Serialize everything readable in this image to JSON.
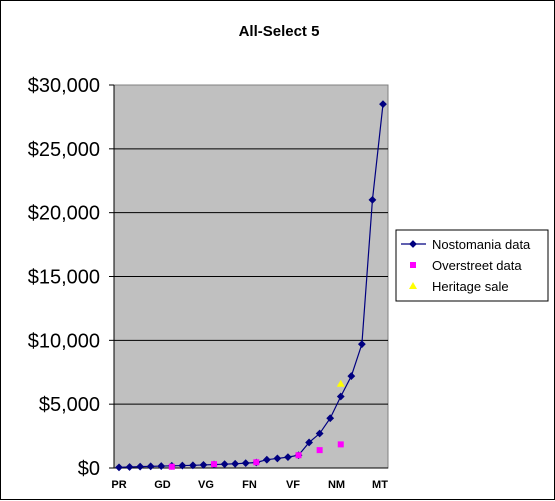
{
  "chart_data": {
    "type": "line",
    "title": "All-Select 5",
    "xlabel": "",
    "ylabel": "",
    "ylim": [
      0,
      30000
    ],
    "yticks": [
      "$0",
      "$5,000",
      "$10,000",
      "$15,000",
      "$20,000",
      "$25,000",
      "$30,000"
    ],
    "xtick_labels": [
      "PR",
      "GD",
      "VG",
      "FN",
      "VF",
      "NM",
      "MT"
    ],
    "grid": "horizontal",
    "plot_background": "#c0c0c0",
    "legend_position": "right",
    "series": [
      {
        "name": "Nostomania data",
        "marker": "diamond",
        "line": true,
        "color": "#000080",
        "points": [
          [
            1,
            50
          ],
          [
            2,
            80
          ],
          [
            3,
            110
          ],
          [
            4,
            130
          ],
          [
            5,
            150
          ],
          [
            6,
            170
          ],
          [
            7,
            190
          ],
          [
            8,
            210
          ],
          [
            9,
            240
          ],
          [
            10,
            270
          ],
          [
            11,
            300
          ],
          [
            12,
            330
          ],
          [
            13,
            380
          ],
          [
            14,
            430
          ],
          [
            15,
            650
          ],
          [
            16,
            750
          ],
          [
            17,
            850
          ],
          [
            18,
            1000
          ],
          [
            19,
            2000
          ],
          [
            20,
            2700
          ],
          [
            21,
            3900
          ],
          [
            22,
            5600
          ],
          [
            23,
            7200
          ],
          [
            24,
            9700
          ],
          [
            25,
            21000
          ],
          [
            26,
            28500
          ]
        ]
      },
      {
        "name": "Overstreet data",
        "marker": "square",
        "line": false,
        "color": "#ff00ff",
        "points": [
          [
            6,
            100
          ],
          [
            10,
            300
          ],
          [
            14,
            450
          ],
          [
            18,
            1000
          ],
          [
            20,
            1400
          ],
          [
            22,
            1850
          ]
        ]
      },
      {
        "name": "Heritage sale",
        "marker": "triangle",
        "line": false,
        "color": "#ffff00",
        "points": [
          [
            22,
            6600
          ]
        ]
      }
    ]
  }
}
